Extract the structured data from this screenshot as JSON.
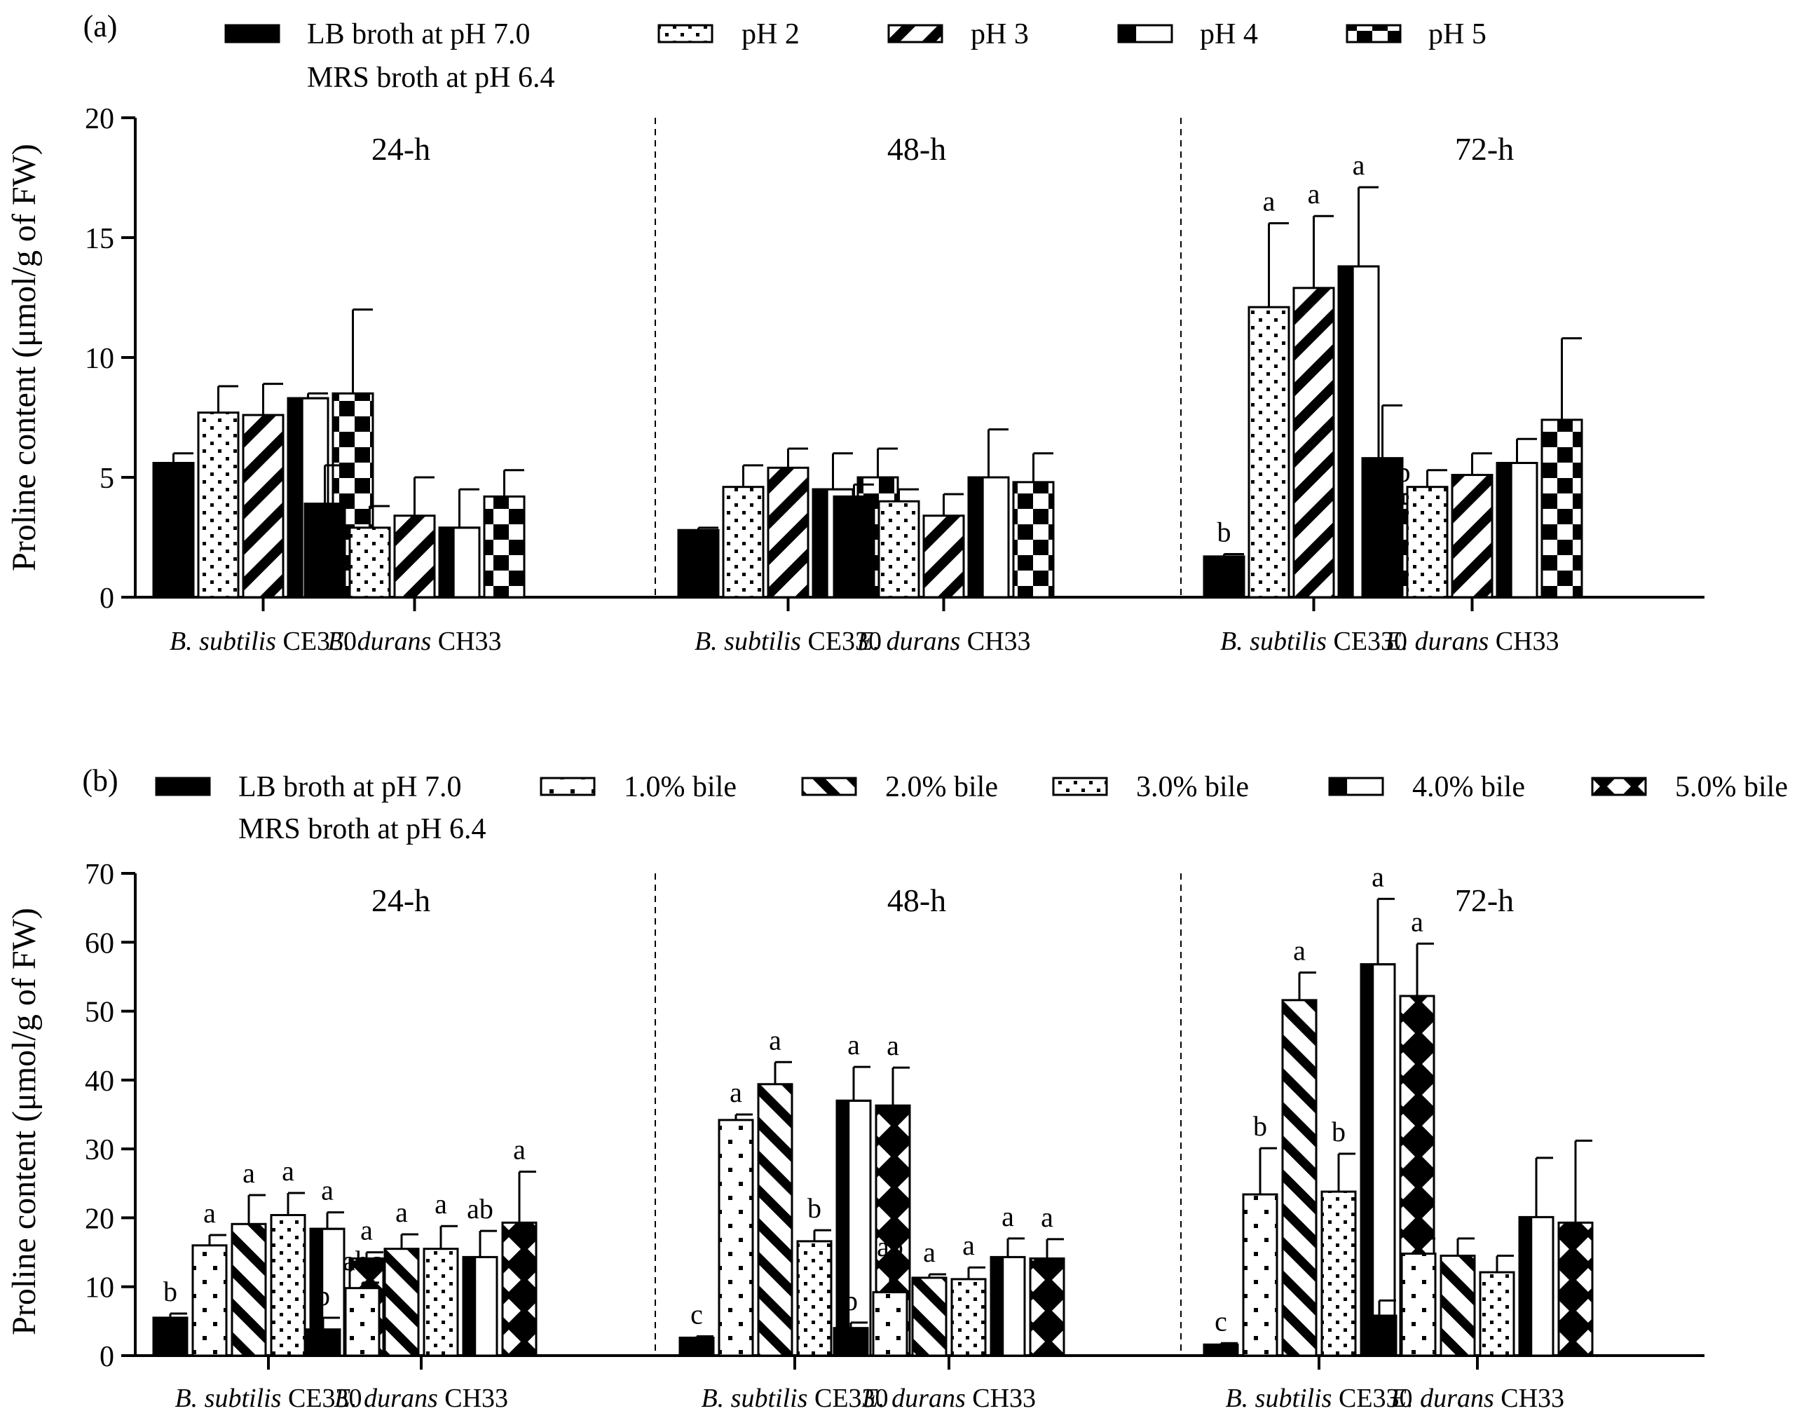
{
  "patterns": {
    "solid": "solid-black",
    "dots": "dotted",
    "stripes": "diagonal-stripes",
    "band": "vertical-band",
    "checker": "checkerboard",
    "scatter": "sparse-squares",
    "diag": "bold-diagonal",
    "cross": "cross-hatch"
  },
  "chart_data": [
    {
      "type": "bar",
      "panel_label": "(a)",
      "ylabel": "Proline content (μmol/g of FW)",
      "ylim": [
        0,
        20
      ],
      "yticks": [
        "0",
        "5",
        "10",
        "15",
        "20"
      ],
      "time_labels": [
        "24-h",
        "48-h",
        "72-h"
      ],
      "categories": [
        "B. subtilis CE330",
        "E. durans CH33",
        "B. subtilis CE330",
        "E. durans CH33",
        "B. subtilis CE330",
        "E. durans CH33"
      ],
      "category_parts": [
        {
          "species": "B. subtilis",
          "strain": " CE330"
        },
        {
          "species": "E. durans",
          "strain": " CH33"
        },
        {
          "species": "B. subtilis",
          "strain": " CE330"
        },
        {
          "species": "E. durans",
          "strain": " CH33"
        },
        {
          "species": "B. subtilis",
          "strain": " CE330"
        },
        {
          "species": "E. durans",
          "strain": " CH33"
        }
      ],
      "legend": {
        "control_line1": "LB broth at pH 7.0",
        "control_line2": "MRS broth at pH 6.4",
        "series_labels": [
          "pH 2",
          "pH 3",
          "pH 4",
          "pH 5"
        ]
      },
      "series": [
        {
          "name": "LB broth at pH 7.0 / MRS broth at pH 6.4",
          "pattern": "solid",
          "values": [
            5.6,
            3.9,
            2.8,
            4.2,
            1.7,
            5.8
          ],
          "errors": [
            0.4,
            1.6,
            0.1,
            0.5,
            0.1,
            2.2
          ],
          "letters": [
            "",
            "",
            "",
            "",
            "b",
            ""
          ]
        },
        {
          "name": "pH 2",
          "pattern": "dots",
          "values": [
            7.7,
            2.9,
            4.6,
            4.0,
            12.1,
            4.6
          ],
          "errors": [
            1.1,
            0.9,
            0.9,
            0.5,
            3.5,
            0.7
          ],
          "letters": [
            "",
            "",
            "",
            "",
            "a",
            ""
          ]
        },
        {
          "name": "pH 3",
          "pattern": "stripes",
          "values": [
            7.6,
            3.4,
            5.4,
            3.4,
            12.9,
            5.1
          ],
          "errors": [
            1.3,
            1.6,
            0.8,
            0.9,
            3.0,
            0.9
          ],
          "letters": [
            "",
            "",
            "",
            "",
            "a",
            ""
          ]
        },
        {
          "name": "pH 4",
          "pattern": "band",
          "values": [
            8.3,
            2.9,
            4.5,
            5.0,
            13.8,
            5.6
          ],
          "errors": [
            0.2,
            1.6,
            1.5,
            2.0,
            3.3,
            1.0
          ],
          "letters": [
            "",
            "",
            "",
            "",
            "a",
            ""
          ]
        },
        {
          "name": "pH 5",
          "pattern": "checker",
          "values": [
            8.5,
            4.2,
            5.0,
            4.8,
            3.9,
            7.4
          ],
          "errors": [
            3.5,
            1.1,
            1.2,
            1.2,
            0.4,
            3.4
          ],
          "letters": [
            "",
            "",
            "",
            "",
            "b",
            ""
          ]
        }
      ]
    },
    {
      "type": "bar",
      "panel_label": "(b)",
      "ylabel": "Proline content (μmol/g of FW)",
      "ylim": [
        0,
        70
      ],
      "yticks": [
        "0",
        "10",
        "20",
        "30",
        "40",
        "50",
        "60",
        "70"
      ],
      "time_labels": [
        "24-h",
        "48-h",
        "72-h"
      ],
      "categories": [
        "B. subtilis CE330",
        "E. durans CH33",
        "B. subtilis CE330",
        "E. durans CH33",
        "B. subtilis CE330",
        "E. durans CH33"
      ],
      "category_parts": [
        {
          "species": "B. subtilis",
          "strain": " CE330"
        },
        {
          "species": "E. durans",
          "strain": " CH33"
        },
        {
          "species": "B. subtilis",
          "strain": " CE330"
        },
        {
          "species": "E. durans",
          "strain": " CH33"
        },
        {
          "species": "B. subtilis",
          "strain": " CE330"
        },
        {
          "species": "E. durans",
          "strain": " CH33"
        }
      ],
      "legend": {
        "control_line1": "LB broth at pH 7.0",
        "control_line2": "MRS broth at pH 6.4",
        "series_labels": [
          "1.0% bile",
          "2.0% bile",
          "3.0% bile",
          "4.0% bile",
          "5.0% bile"
        ]
      },
      "series": [
        {
          "name": "LB broth at pH 7.0 / MRS broth at pH 6.4",
          "pattern": "solid",
          "values": [
            5.5,
            3.8,
            2.6,
            4.0,
            1.6,
            5.8
          ],
          "errors": [
            0.6,
            1.7,
            0.2,
            0.8,
            0.2,
            2.2
          ],
          "letters": [
            "b",
            "b",
            "c",
            "b",
            "c",
            ""
          ]
        },
        {
          "name": "1.0% bile",
          "pattern": "scatter",
          "values": [
            16.0,
            9.8,
            34.2,
            9.2,
            23.4,
            14.8
          ],
          "errors": [
            1.5,
            0.8,
            0.8,
            3.4,
            6.7,
            2.2
          ],
          "letters": [
            "a",
            "abc",
            "a",
            "ab",
            "b",
            ""
          ]
        },
        {
          "name": "2.0% bile",
          "pattern": "diag",
          "values": [
            19.1,
            15.5,
            39.4,
            11.3,
            51.6,
            14.5
          ],
          "errors": [
            4.2,
            2.1,
            3.2,
            0.5,
            4.0,
            2.5
          ],
          "letters": [
            "a",
            "a",
            "a",
            "a",
            "a",
            ""
          ]
        },
        {
          "name": "3.0% bile",
          "pattern": "dots",
          "values": [
            20.4,
            15.5,
            16.6,
            11.1,
            23.8,
            12.1
          ],
          "errors": [
            3.2,
            3.3,
            1.6,
            1.7,
            5.5,
            2.4
          ],
          "letters": [
            "a",
            "a",
            "b",
            "a",
            "b",
            ""
          ]
        },
        {
          "name": "4.0% bile",
          "pattern": "band",
          "values": [
            18.4,
            14.3,
            37.0,
            14.3,
            56.8,
            20.1
          ],
          "errors": [
            2.4,
            3.8,
            4.9,
            2.7,
            9.5,
            8.6
          ],
          "letters": [
            "a",
            "ab",
            "a",
            "a",
            "a",
            ""
          ]
        },
        {
          "name": "5.0% bile",
          "pattern": "cross",
          "values": [
            14.1,
            19.3,
            36.3,
            14.1,
            52.2,
            19.3
          ],
          "errors": [
            0.9,
            7.4,
            5.5,
            2.8,
            7.6,
            11.9
          ],
          "letters": [
            "a",
            "a",
            "a",
            "a",
            "a",
            ""
          ]
        }
      ]
    }
  ]
}
